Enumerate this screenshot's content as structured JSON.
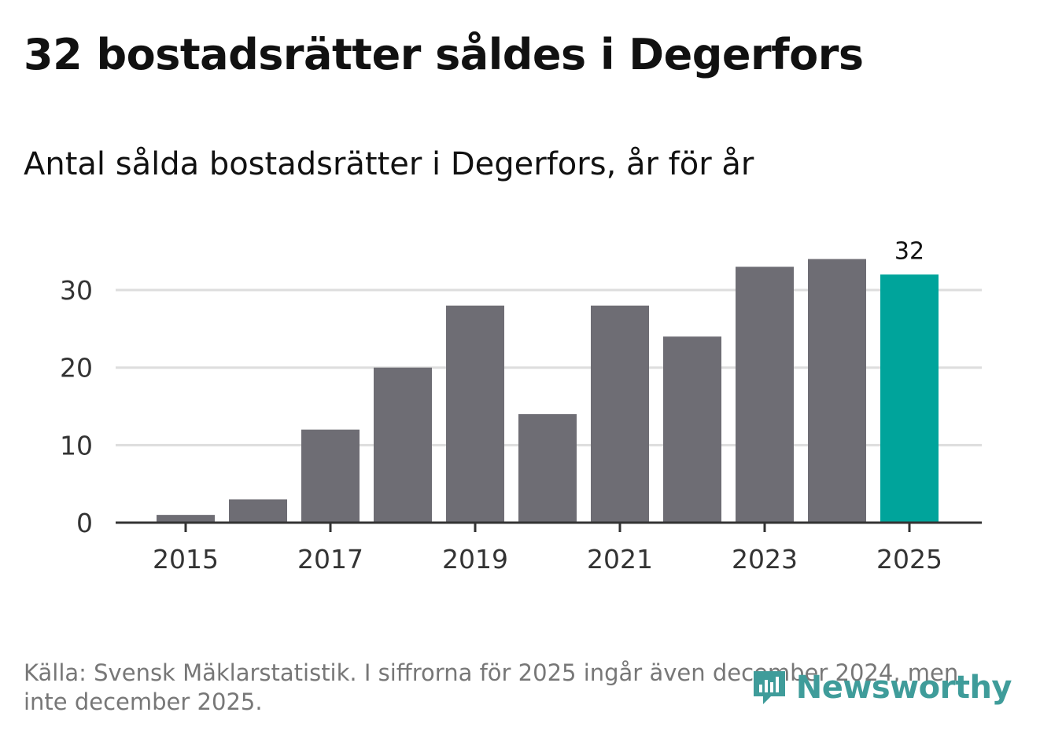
{
  "header": {
    "title": "32 bostadsrätter såldes i Degerfors",
    "subtitle": "Antal sålda bostadsrätter i Degerfors, år för år"
  },
  "footer": {
    "source": "Källa: Svensk Mäklarstatistik. I siffrorna för 2025 ingår även december 2024, men inte december 2025."
  },
  "brand": {
    "name": "Newsworthy",
    "color": "#3f9c9a"
  },
  "colors": {
    "bar": "#6e6d74",
    "highlight": "#00a49b",
    "grid": "#dddddd",
    "axis": "#333333"
  },
  "chart_data": {
    "type": "bar",
    "title": "Antal sålda bostadsrätter i Degerfors, år för år",
    "xlabel": "",
    "ylabel": "",
    "categories": [
      "2015",
      "2016",
      "2017",
      "2018",
      "2019",
      "2020",
      "2021",
      "2022",
      "2023",
      "2024",
      "2025"
    ],
    "values": [
      1,
      3,
      12,
      20,
      28,
      14,
      28,
      24,
      33,
      34,
      32
    ],
    "x_tick_labels": [
      "2015",
      "2017",
      "2019",
      "2021",
      "2023",
      "2025"
    ],
    "yticks": [
      0,
      10,
      20,
      30
    ],
    "ylim": [
      0,
      37
    ],
    "grid": true,
    "highlight_category": "2025",
    "annotations": [
      {
        "category": "2025",
        "text": "32"
      }
    ]
  }
}
